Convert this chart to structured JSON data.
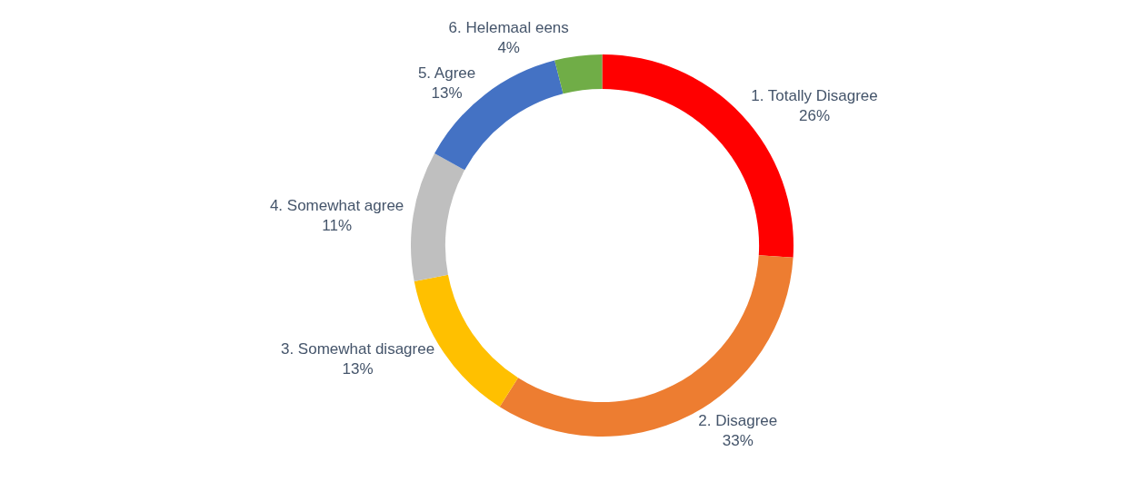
{
  "chart_data": {
    "type": "donut",
    "categories": [
      "1. Totally Disagree",
      "2. Disagree",
      "3. Somewhat disagree",
      "4. Somewhat agree",
      "5. Agree",
      "6. Helemaal eens"
    ],
    "values": [
      26,
      33,
      13,
      11,
      13,
      4
    ],
    "colors": [
      "#ff0000",
      "#ed7d31",
      "#ffc000",
      "#bfbfbf",
      "#4472c4",
      "#70ad47"
    ],
    "value_labels": [
      "26%",
      "33%",
      "13%",
      "11%",
      "13%",
      "4%"
    ],
    "legend": false
  }
}
